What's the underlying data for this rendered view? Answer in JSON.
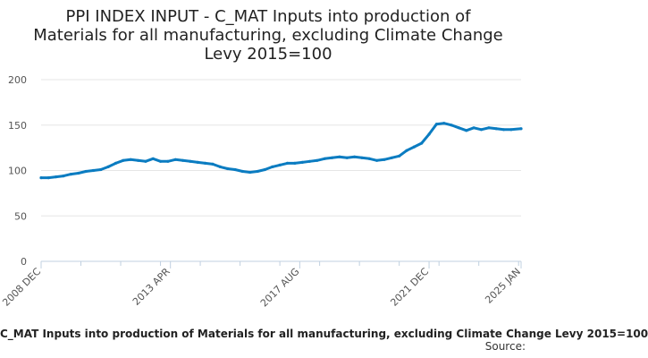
{
  "title_lines": [
    "PPI INDEX INPUT - C_MAT Inputs into production of",
    "Materials for all manufacturing, excluding Climate Change",
    "Levy 2015=100"
  ],
  "legend_label": "C_MAT Inputs into production of Materials for all manufacturing, excluding Climate Change Levy 2015=100",
  "source_label": "Source:",
  "colors": {
    "series": "#0b7cc1",
    "grid": "#e6e6e6",
    "axis": "#c0d0e0"
  },
  "chart_data": {
    "type": "line",
    "title": "PPI INDEX INPUT - C_MAT Inputs into production of Materials for all manufacturing, excluding Climate Change Levy 2015=100",
    "xlabel": "",
    "ylabel": "",
    "ylim": [
      0,
      200
    ],
    "yticks": [
      0,
      50,
      100,
      150,
      200
    ],
    "xticks": [
      "2008 DEC",
      "2013 APR",
      "2017 AUG",
      "2021 DEC",
      "2025 JAN"
    ],
    "x_range": [
      "2008 DEC",
      "2025 JAN"
    ],
    "grid": true,
    "series": [
      {
        "name": "C_MAT Inputs into production of Materials for all manufacturing, excluding Climate Change Levy 2015=100",
        "points": [
          [
            "2008 DEC",
            92
          ],
          [
            "2009 MAR",
            92
          ],
          [
            "2009 JUN",
            93
          ],
          [
            "2009 SEP",
            94
          ],
          [
            "2009 DEC",
            96
          ],
          [
            "2010 MAR",
            97
          ],
          [
            "2010 JUN",
            99
          ],
          [
            "2010 SEP",
            100
          ],
          [
            "2010 DEC",
            101
          ],
          [
            "2011 MAR",
            104
          ],
          [
            "2011 JUN",
            108
          ],
          [
            "2011 SEP",
            111
          ],
          [
            "2011 DEC",
            112
          ],
          [
            "2012 MAR",
            111
          ],
          [
            "2012 JUN",
            110
          ],
          [
            "2012 SEP",
            113
          ],
          [
            "2012 DEC",
            110
          ],
          [
            "2013 MAR",
            110
          ],
          [
            "2013 JUN",
            112
          ],
          [
            "2013 SEP",
            111
          ],
          [
            "2013 DEC",
            110
          ],
          [
            "2014 MAR",
            109
          ],
          [
            "2014 JUN",
            108
          ],
          [
            "2014 SEP",
            107
          ],
          [
            "2014 DEC",
            104
          ],
          [
            "2015 MAR",
            102
          ],
          [
            "2015 JUN",
            101
          ],
          [
            "2015 SEP",
            99
          ],
          [
            "2015 DEC",
            98
          ],
          [
            "2016 MAR",
            99
          ],
          [
            "2016 JUN",
            101
          ],
          [
            "2016 SEP",
            104
          ],
          [
            "2016 DEC",
            106
          ],
          [
            "2017 MAR",
            108
          ],
          [
            "2017 JUN",
            108
          ],
          [
            "2017 SEP",
            109
          ],
          [
            "2017 DEC",
            110
          ],
          [
            "2018 MAR",
            111
          ],
          [
            "2018 JUN",
            113
          ],
          [
            "2018 SEP",
            114
          ],
          [
            "2018 DEC",
            115
          ],
          [
            "2019 MAR",
            114
          ],
          [
            "2019 JUN",
            115
          ],
          [
            "2019 SEP",
            114
          ],
          [
            "2019 DEC",
            113
          ],
          [
            "2020 MAR",
            111
          ],
          [
            "2020 JUN",
            112
          ],
          [
            "2020 SEP",
            114
          ],
          [
            "2020 DEC",
            116
          ],
          [
            "2021 MAR",
            122
          ],
          [
            "2021 JUN",
            126
          ],
          [
            "2021 SEP",
            130
          ],
          [
            "2021 DEC",
            140
          ],
          [
            "2022 MAR",
            151
          ],
          [
            "2022 JUN",
            152
          ],
          [
            "2022 SEP",
            150
          ],
          [
            "2022 DEC",
            147
          ],
          [
            "2023 MAR",
            144
          ],
          [
            "2023 JUN",
            147
          ],
          [
            "2023 SEP",
            145
          ],
          [
            "2023 DEC",
            147
          ],
          [
            "2024 MAR",
            146
          ],
          [
            "2024 JUN",
            145
          ],
          [
            "2024 SEP",
            145
          ],
          [
            "2025 JAN",
            146
          ]
        ]
      }
    ]
  }
}
